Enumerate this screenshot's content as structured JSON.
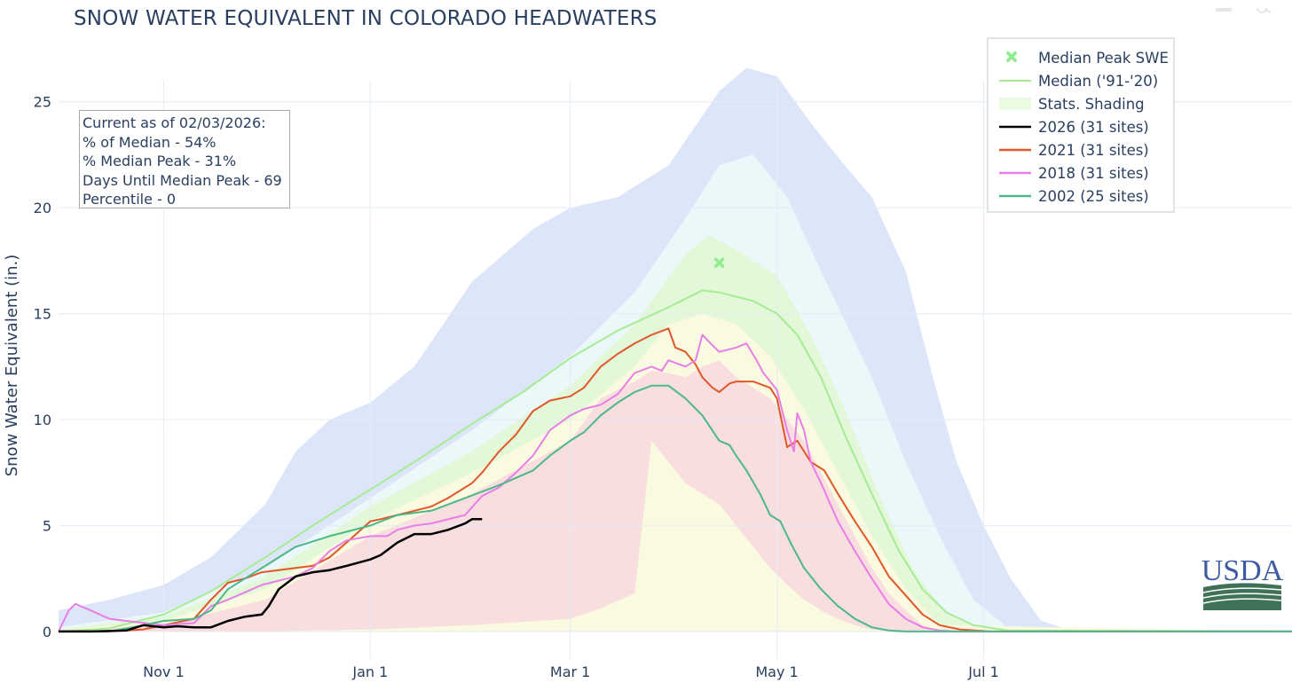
{
  "title": "SNOW WATER EQUIVALENT IN COLORADO HEADWATERS",
  "stats_box": {
    "header": "Current as of 02/03/2026:",
    "pct_median": "% of Median - 54%",
    "pct_median_peak": "% Median Peak - 31%",
    "days_until_peak": "Days Until Median Peak - 69",
    "percentile": "Percentile - 0"
  },
  "legend": [
    {
      "name": "Median Peak SWE",
      "kind": "marker",
      "color": "#90ee90"
    },
    {
      "name": "Median ('91-'20)",
      "kind": "line",
      "color": "#90ee90"
    },
    {
      "name": "Stats. Shading",
      "kind": "shade",
      "color": "#e9fbe0"
    },
    {
      "name": "2026 (31 sites)",
      "kind": "line",
      "color": "#000000"
    },
    {
      "name": "2021 (31 sites)",
      "kind": "line",
      "color": "#e0572a"
    },
    {
      "name": "2018 (31 sites)",
      "kind": "line",
      "color": "#e87ee8"
    },
    {
      "name": "2002 (25 sites)",
      "kind": "line",
      "color": "#4cb888"
    }
  ],
  "logo_text": "USDA",
  "chart_data": {
    "type": "line",
    "title": "SNOW WATER EQUIVALENT IN COLORADO HEADWATERS",
    "xlabel": "",
    "ylabel": "Snow Water Equivalent (in.)",
    "x_unit": "days since Oct 1",
    "xlim": [
      0,
      364
    ],
    "ylim": [
      -1.3,
      27.5
    ],
    "x_ticks": [
      {
        "day": 31,
        "label": "Nov  1"
      },
      {
        "day": 92,
        "label": "Jan  1"
      },
      {
        "day": 151,
        "label": "Mar  1"
      },
      {
        "day": 212,
        "label": "May  1"
      },
      {
        "day": 273,
        "label": "Jul  1"
      }
    ],
    "y_ticks": [
      0,
      5,
      10,
      15,
      20,
      25
    ],
    "grid": true,
    "legend_position": "top-right",
    "median_peak": {
      "day": 195,
      "value": 17.4
    },
    "bands": [
      {
        "name": "max-min",
        "color": "#dce6f8",
        "x": [
          0,
          15,
          31,
          45,
          61,
          70,
          80,
          92,
          105,
          122,
          140,
          151,
          165,
          180,
          195,
          203,
          212,
          222,
          232,
          240,
          250,
          258,
          265,
          273,
          281,
          290,
          300,
          364
        ],
        "upper": [
          1.0,
          1.5,
          2.2,
          3.5,
          6.0,
          8.5,
          10.0,
          10.8,
          12.5,
          16.5,
          19.0,
          20.0,
          20.5,
          22.0,
          25.5,
          26.6,
          26.2,
          24.0,
          22.0,
          20.5,
          17.0,
          12.0,
          8.0,
          5.0,
          2.5,
          0.5,
          0.0,
          0.0
        ],
        "lower": [
          0,
          0,
          0,
          0,
          0,
          0,
          0,
          0,
          0,
          0,
          0,
          0,
          0,
          0,
          0,
          0,
          0,
          0,
          0,
          0,
          0,
          0,
          0,
          0,
          0,
          0,
          0,
          0
        ]
      },
      {
        "name": "90th-10th",
        "color": "#eaf8f9",
        "x": [
          0,
          31,
          61,
          92,
          122,
          151,
          170,
          185,
          195,
          205,
          215,
          225,
          240,
          250,
          260,
          270,
          280,
          364
        ],
        "upper": [
          0.2,
          0.9,
          3.0,
          6.3,
          9.5,
          13.0,
          16.0,
          19.5,
          22.0,
          22.5,
          20.5,
          17.0,
          12.0,
          8.0,
          4.5,
          1.5,
          0.2,
          0.0
        ],
        "lower": [
          0,
          0,
          0,
          0,
          0,
          0,
          0,
          0,
          0,
          0,
          0,
          0,
          0,
          0,
          0,
          0,
          0,
          0
        ]
      },
      {
        "name": "70th-30th",
        "color": "#e3f8d8",
        "x": [
          0,
          31,
          61,
          92,
          122,
          151,
          170,
          185,
          192,
          200,
          212,
          222,
          232,
          242,
          252,
          262,
          272,
          364
        ],
        "upper": [
          0.1,
          0.7,
          2.6,
          5.9,
          8.5,
          11.6,
          14.5,
          17.8,
          18.7,
          18.0,
          16.8,
          14.0,
          10.5,
          6.5,
          3.0,
          0.8,
          0.1,
          0.0
        ],
        "lower": [
          0,
          0,
          0,
          0,
          0,
          0,
          0,
          0,
          0,
          0,
          0,
          0,
          0,
          0,
          0,
          0,
          0,
          0
        ]
      },
      {
        "name": "50th-30th",
        "color": "#fafae0",
        "x": [
          0,
          31,
          61,
          92,
          122,
          151,
          170,
          180,
          190,
          200,
          210,
          220,
          230,
          240,
          250,
          260,
          364
        ],
        "upper": [
          0.05,
          0.5,
          2.0,
          5.2,
          7.5,
          10.0,
          12.5,
          14.5,
          15.0,
          14.5,
          13.0,
          10.5,
          7.5,
          4.5,
          2.0,
          0.3,
          0.0
        ],
        "lower": [
          0,
          0,
          0,
          0,
          0,
          0,
          0,
          0,
          0,
          0,
          0,
          0,
          0,
          0,
          0,
          0,
          0
        ]
      },
      {
        "name": "30th-10th",
        "color": "#f8dede",
        "x": [
          0,
          31,
          61,
          92,
          122,
          151,
          160,
          170,
          175,
          180,
          185,
          190,
          195,
          200,
          205,
          210,
          215,
          220,
          225,
          230,
          235,
          240,
          245,
          250,
          255,
          260,
          364
        ],
        "upper": [
          0.03,
          0.3,
          1.5,
          4.5,
          6.5,
          9.0,
          11.0,
          11.8,
          12.3,
          12.2,
          12.0,
          12.5,
          12.8,
          12.0,
          11.5,
          11.0,
          10.0,
          9.0,
          7.5,
          6.0,
          4.5,
          3.0,
          1.8,
          1.0,
          0.3,
          0.0,
          0.0
        ],
        "lower": [
          0,
          0,
          0,
          0.1,
          0.3,
          0.6,
          1.1,
          1.8,
          9.0,
          8.0,
          7.0,
          6.5,
          6.0,
          5.0,
          4.0,
          3.0,
          2.2,
          1.5,
          1.0,
          0.6,
          0.3,
          0.1,
          0,
          0,
          0,
          0,
          0
        ]
      }
    ],
    "series": [
      {
        "name": "Median ('91-'20)",
        "color": "#a6ec94",
        "width": 2,
        "x": [
          0,
          15,
          31,
          45,
          61,
          75,
          92,
          105,
          122,
          137,
          151,
          165,
          180,
          190,
          195,
          200,
          205,
          212,
          218,
          225,
          232,
          240,
          248,
          255,
          262,
          270,
          280,
          364
        ],
        "values": [
          0,
          0.15,
          0.8,
          1.9,
          3.5,
          5.0,
          6.7,
          8.0,
          9.8,
          11.3,
          12.9,
          14.2,
          15.3,
          16.1,
          16.0,
          15.8,
          15.6,
          15.0,
          14.0,
          12.0,
          9.3,
          6.5,
          3.8,
          2.0,
          0.9,
          0.3,
          0.05,
          0.0
        ]
      },
      {
        "name": "2021 (31 sites)",
        "color": "#e0572a",
        "width": 2,
        "x": [
          0,
          10,
          20,
          25,
          31,
          40,
          45,
          50,
          55,
          60,
          65,
          70,
          75,
          80,
          85,
          92,
          95,
          100,
          105,
          110,
          115,
          122,
          125,
          130,
          135,
          140,
          145,
          151,
          155,
          160,
          165,
          170,
          175,
          180,
          182,
          185,
          188,
          190,
          193,
          195,
          198,
          200,
          205,
          210,
          212,
          215,
          218,
          222,
          226,
          230,
          235,
          240,
          245,
          250,
          255,
          260,
          266,
          275,
          364
        ],
        "values": [
          0,
          0,
          0.05,
          0.1,
          0.3,
          0.6,
          1.5,
          2.3,
          2.5,
          2.8,
          2.9,
          3.0,
          3.1,
          3.5,
          4.2,
          5.2,
          5.3,
          5.5,
          5.7,
          5.9,
          6.3,
          7.0,
          7.5,
          8.5,
          9.3,
          10.4,
          10.9,
          11.1,
          11.5,
          12.5,
          13.1,
          13.6,
          14.0,
          14.3,
          13.4,
          13.2,
          12.6,
          12.0,
          11.5,
          11.3,
          11.7,
          11.8,
          11.8,
          11.5,
          11.0,
          8.7,
          9.0,
          8.0,
          7.6,
          6.5,
          5.2,
          4.0,
          2.6,
          1.7,
          0.8,
          0.3,
          0.1,
          0.0,
          0.0
        ]
      },
      {
        "name": "2018 (31 sites)",
        "color": "#e87ee8",
        "width": 2,
        "x": [
          0,
          3,
          5,
          8,
          15,
          20,
          31,
          40,
          45,
          50,
          60,
          70,
          75,
          80,
          85,
          92,
          97,
          100,
          105,
          110,
          115,
          120,
          125,
          130,
          135,
          140,
          145,
          151,
          155,
          160,
          165,
          170,
          175,
          178,
          180,
          185,
          188,
          190,
          193,
          195,
          200,
          203,
          206,
          208,
          212,
          215,
          217,
          218,
          220,
          222,
          225,
          230,
          235,
          240,
          245,
          250,
          255,
          260,
          265,
          364
        ],
        "values": [
          0,
          1.0,
          1.3,
          1.1,
          0.6,
          0.5,
          0.3,
          0.4,
          1.2,
          1.5,
          2.2,
          2.6,
          3.0,
          3.8,
          4.3,
          4.5,
          4.5,
          4.8,
          5.0,
          5.1,
          5.3,
          5.5,
          6.4,
          6.8,
          7.5,
          8.3,
          9.5,
          10.2,
          10.5,
          10.7,
          11.2,
          12.2,
          12.5,
          12.3,
          12.8,
          12.5,
          12.8,
          14.0,
          13.5,
          13.2,
          13.4,
          13.6,
          12.8,
          12.2,
          11.4,
          9.5,
          8.5,
          10.3,
          9.5,
          8.0,
          7.0,
          5.2,
          3.8,
          2.5,
          1.3,
          0.6,
          0.2,
          0.05,
          0.0,
          0.0
        ]
      },
      {
        "name": "2002 (25 sites)",
        "color": "#4cb888",
        "width": 2,
        "x": [
          0,
          15,
          25,
          31,
          40,
          45,
          50,
          55,
          60,
          70,
          80,
          92,
          100,
          110,
          120,
          130,
          140,
          145,
          151,
          155,
          160,
          165,
          170,
          175,
          180,
          185,
          190,
          195,
          198,
          200,
          203,
          207,
          210,
          213,
          216,
          220,
          225,
          230,
          235,
          240,
          245,
          250,
          364
        ],
        "values": [
          0,
          0,
          0.3,
          0.5,
          0.6,
          1.0,
          2.0,
          2.5,
          3.0,
          4.0,
          4.5,
          5.0,
          5.5,
          5.7,
          6.3,
          6.9,
          7.6,
          8.3,
          9.0,
          9.4,
          10.2,
          10.8,
          11.3,
          11.6,
          11.6,
          11.0,
          10.2,
          9.0,
          8.8,
          8.3,
          7.6,
          6.5,
          5.5,
          5.2,
          4.2,
          3.0,
          2.0,
          1.2,
          0.6,
          0.2,
          0.05,
          0.0,
          0.0
        ]
      },
      {
        "name": "2026 (31 sites)",
        "color": "#000000",
        "width": 2.5,
        "x": [
          0,
          10,
          20,
          25,
          31,
          35,
          40,
          45,
          50,
          55,
          60,
          62,
          65,
          70,
          75,
          80,
          85,
          92,
          95,
          100,
          105,
          110,
          115,
          120,
          122,
          125
        ],
        "values": [
          0,
          0,
          0.05,
          0.3,
          0.2,
          0.25,
          0.2,
          0.2,
          0.5,
          0.7,
          0.8,
          1.2,
          2.0,
          2.6,
          2.8,
          2.9,
          3.1,
          3.4,
          3.6,
          4.2,
          4.6,
          4.6,
          4.8,
          5.1,
          5.3,
          5.3
        ]
      }
    ]
  }
}
